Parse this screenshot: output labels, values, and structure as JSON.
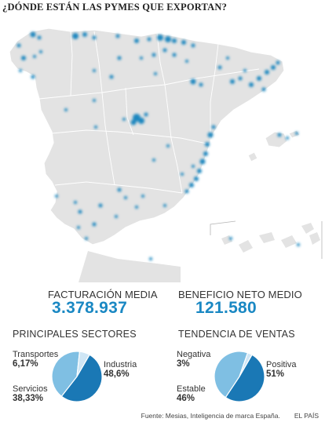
{
  "title": "¿DÓNDE ESTÁN LAS PYMES QUE EXPORTAN?",
  "colors": {
    "land": "#e3e3e3",
    "border": "#ffffff",
    "dot": "#1e87bf",
    "accent": "#1a88c3",
    "pie_dark": "#1a78b5",
    "pie_light": "#7fbfe3",
    "pie_pale": "#cfe6f5"
  },
  "stats": {
    "facturacion_label": "FACTURACIÓN MEDIA",
    "facturacion_value": "3.378.937",
    "beneficio_label": "BENEFICIO NETO MEDIO",
    "beneficio_value": "121.580"
  },
  "sectores": {
    "heading": "PRINCIPALES SECTORES",
    "slices": [
      {
        "name": "Industria",
        "pct_label": "48,6%",
        "value": 48.6,
        "color": "#1a78b5"
      },
      {
        "name": "Servicios",
        "pct_label": "38,33%",
        "value": 38.33,
        "color": "#7fbfe3"
      },
      {
        "name": "Transportes",
        "pct_label": "6,17%",
        "value": 6.17,
        "color": "#cfe6f5"
      }
    ]
  },
  "tendencia": {
    "heading": "TENDENCIA DE VENTAS",
    "slices": [
      {
        "name": "Positiva",
        "pct_label": "51%",
        "value": 51,
        "color": "#1a78b5"
      },
      {
        "name": "Estable",
        "pct_label": "46%",
        "value": 46,
        "color": "#7fbfe3"
      },
      {
        "name": "Negativa",
        "pct_label": "3%",
        "value": 3,
        "color": "#cfe6f5"
      }
    ]
  },
  "source": {
    "text": "Fuente: Mesias, Inteligencia de marca España.",
    "publisher": "EL PAÍS"
  }
}
